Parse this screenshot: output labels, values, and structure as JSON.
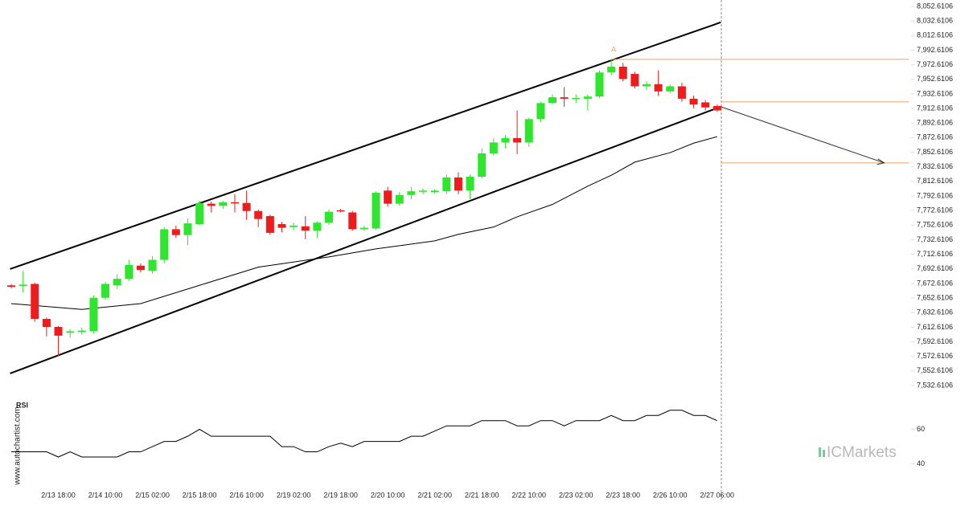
{
  "watermark": "www.autochartist.com",
  "logo": "ICMarkets",
  "chart_data": [
    {
      "type": "candlestick",
      "categories": [
        null,
        null,
        null,
        null,
        "2/13 18:00",
        null,
        null,
        null,
        "2/14 10:00",
        null,
        null,
        null,
        "2/15 02:00",
        null,
        null,
        null,
        "2/15 18:00",
        null,
        null,
        null,
        "2/16 10:00",
        null,
        null,
        null,
        "2/19 02:00",
        null,
        null,
        null,
        "2/19 18:00",
        null,
        null,
        null,
        "2/20 10:00",
        null,
        null,
        null,
        "2/21 02:00",
        null,
        null,
        null,
        "2/21 18:00",
        null,
        null,
        null,
        "2/22 10:00",
        null,
        null,
        null,
        "2/23 02:00",
        null,
        null,
        null,
        "2/23 18:00",
        null,
        null,
        null,
        "2/26 10:00",
        null,
        null,
        null,
        "2/27 06:00"
      ],
      "open": [
        7670,
        7669,
        7672,
        7624,
        7613,
        7605,
        7606,
        7607,
        7653,
        7670,
        7679,
        7697,
        7690,
        7705,
        7747,
        7739,
        7754,
        7782,
        7779,
        7784,
        7783,
        7772,
        7765,
        7754,
        7750,
        7751,
        7745,
        7756,
        7773,
        7770,
        7747,
        7748,
        7800,
        7782,
        7794,
        7799,
        7798,
        7799,
        7818,
        7800,
        7819,
        7851,
        7866,
        7872,
        7866,
        7898,
        7920,
        7928,
        7926,
        7926,
        7929,
        7962,
        7970,
        7960,
        7943,
        7946,
        7936,
        7943,
        7926,
        7921,
        7916
      ],
      "high": [
        7672,
        7690,
        7674,
        7626,
        7614,
        7610,
        7612,
        7656,
        7675,
        7685,
        7705,
        7700,
        7710,
        7750,
        7752,
        7762,
        7786,
        7785,
        7786,
        7795,
        7800,
        7774,
        7767,
        7757,
        7756,
        7765,
        7758,
        7774,
        7775,
        7772,
        7752,
        7799,
        7805,
        7798,
        7805,
        7803,
        7802,
        7822,
        7825,
        7822,
        7858,
        7872,
        7876,
        7910,
        7900,
        7922,
        7932,
        7942,
        7932,
        7932,
        7965,
        7980,
        7975,
        7963,
        7950,
        7965,
        7946,
        7948,
        7930,
        7924,
        7918
      ],
      "low": [
        7666,
        7660,
        7620,
        7600,
        7573,
        7598,
        7602,
        7604,
        7650,
        7665,
        7676,
        7688,
        7686,
        7700,
        7735,
        7725,
        7752,
        7770,
        7775,
        7770,
        7760,
        7750,
        7739,
        7743,
        7745,
        7733,
        7735,
        7753,
        7770,
        7745,
        7745,
        7746,
        7778,
        7779,
        7788,
        7795,
        7796,
        7795,
        7795,
        7788,
        7817,
        7848,
        7858,
        7850,
        7860,
        7894,
        7918,
        7915,
        7920,
        7910,
        7927,
        7958,
        7950,
        7940,
        7938,
        7930,
        7933,
        7922,
        7913,
        7910,
        7908
      ],
      "close": [
        7668,
        7671,
        7624,
        7613,
        7601,
        7607,
        7608,
        7653,
        7672,
        7679,
        7698,
        7691,
        7705,
        7747,
        7739,
        7755,
        7783,
        7779,
        7784,
        7783,
        7772,
        7761,
        7742,
        7749,
        7752,
        7745,
        7756,
        7771,
        7772,
        7747,
        7749,
        7797,
        7782,
        7794,
        7799,
        7800,
        7800,
        7818,
        7800,
        7819,
        7851,
        7866,
        7872,
        7866,
        7898,
        7920,
        7928,
        7926,
        7927,
        7929,
        7962,
        7970,
        7953,
        7943,
        7946,
        7936,
        7943,
        7926,
        7918,
        7914,
        7910
      ],
      "up_color": "#2ee62e",
      "down_color": "#ee1c1c",
      "ylim": [
        7523.8,
        8061.4
      ],
      "yticks": [
        {
          "value": 8052.6106,
          "label": "8,052.6106"
        },
        {
          "value": 8032.6106,
          "label": "8,032.6106"
        },
        {
          "value": 8012.6106,
          "label": "8,012.6106"
        },
        {
          "value": 7992.6106,
          "label": "7,992.6106"
        },
        {
          "value": 7972.6106,
          "label": "7,972.6106"
        },
        {
          "value": 7952.6106,
          "label": "7,952.6106"
        },
        {
          "value": 7932.6106,
          "label": "7,932.6106"
        },
        {
          "value": 7912.6106,
          "label": "7,912.6106"
        },
        {
          "value": 7892.6106,
          "label": "7,892.6106"
        },
        {
          "value": 7872.6106,
          "label": "7,872.6106"
        },
        {
          "value": 7852.6106,
          "label": "7,852.6106"
        },
        {
          "value": 7832.6106,
          "label": "7,832.6106"
        },
        {
          "value": 7812.6106,
          "label": "7,812.6106"
        },
        {
          "value": 7792.6106,
          "label": "7,792.6106"
        },
        {
          "value": 7772.6106,
          "label": "7,772.6106"
        },
        {
          "value": 7752.6106,
          "label": "7,752.6106"
        },
        {
          "value": 7732.6106,
          "label": "7,732.6106"
        },
        {
          "value": 7712.6106,
          "label": "7,712.6106"
        },
        {
          "value": 7692.6106,
          "label": "7,692.6106"
        },
        {
          "value": 7672.6106,
          "label": "7,672.6106"
        },
        {
          "value": 7652.6106,
          "label": "7,652.6106"
        },
        {
          "value": 7632.6106,
          "label": "7,632.6106"
        },
        {
          "value": 7612.6106,
          "label": "7,612.6106"
        },
        {
          "value": 7592.6106,
          "label": "7,592.6106"
        },
        {
          "value": 7572.6106,
          "label": "7,572.6106"
        },
        {
          "value": 7552.6106,
          "label": "7,552.6106"
        },
        {
          "value": 7532.6106,
          "label": "7,532.6106"
        }
      ],
      "moving_average": {
        "x": [
          0,
          6,
          11,
          16,
          21,
          27,
          31,
          36,
          38,
          41,
          43,
          46,
          49,
          51,
          53,
          56,
          58,
          60
        ],
        "values": [
          7645,
          7637,
          7645,
          7670,
          7695,
          7709,
          7720,
          7731,
          7740,
          7750,
          7764,
          7781,
          7806,
          7821,
          7839,
          7852,
          7865,
          7874
        ],
        "color": "#000000"
      },
      "channel": [
        {
          "x": [
            -0.1,
            60.3
          ],
          "values": [
            7692.4,
            8030.7
          ]
        },
        {
          "x": [
            -0.1,
            60.3
          ],
          "values": [
            7549.2,
            7915
          ]
        }
      ],
      "channel_color": "#000000",
      "levels": [
        {
          "value": 7980,
          "x": [
            51,
            76.3
          ]
        },
        {
          "value": 7921.6,
          "x": [
            60.3,
            76.3
          ]
        },
        {
          "value": 7837.9,
          "x": [
            60.3,
            76.3
          ]
        }
      ],
      "level_color": "#f0a060",
      "forecast": {
        "x": [
          60.3,
          74.2
        ],
        "values": [
          7915,
          7838
        ]
      },
      "annotation": {
        "text": "A",
        "x": 51,
        "value": 7984
      }
    },
    {
      "type": "line",
      "title": "RSI",
      "values": [
        47,
        47,
        47,
        47,
        44,
        47,
        44,
        44,
        44,
        44,
        47,
        47,
        50,
        53,
        53,
        56,
        60,
        56,
        56,
        56,
        56,
        56,
        56,
        50,
        50,
        47,
        47,
        50,
        52,
        50,
        53,
        53,
        53,
        53,
        56,
        56,
        59,
        62,
        62,
        62,
        65,
        65,
        65,
        62,
        62,
        65,
        65,
        62,
        65,
        65,
        65,
        68,
        65,
        65,
        68,
        68,
        71,
        71,
        68,
        68,
        65
      ],
      "color": "#000000",
      "ylim": [
        25,
        76
      ],
      "yticks": [
        60,
        40
      ]
    }
  ]
}
